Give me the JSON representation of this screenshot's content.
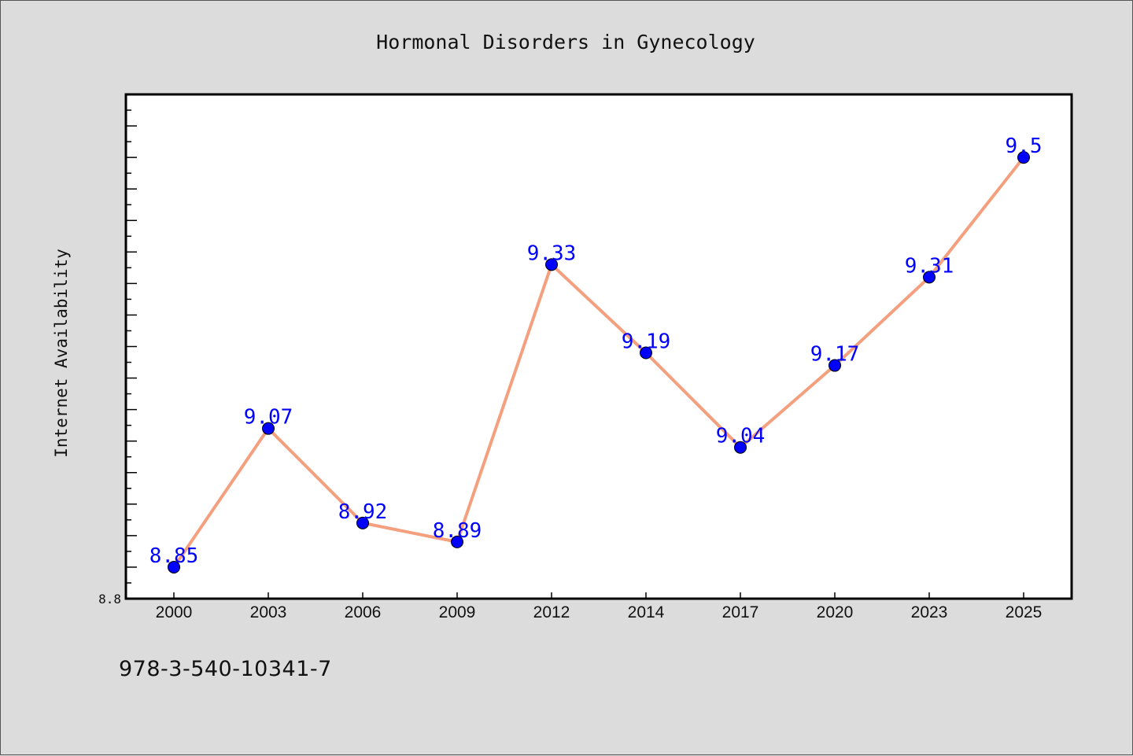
{
  "footer": {
    "code": "978-3-540-10341-7"
  },
  "chart_data": {
    "type": "line",
    "title": "Hormonal Disorders in Gynecology",
    "xlabel": "",
    "ylabel": "Internet Availability",
    "categories": [
      "2000",
      "2003",
      "2006",
      "2009",
      "2012",
      "2014",
      "2017",
      "2020",
      "2023",
      "2025"
    ],
    "series": [
      {
        "values": [
          8.85,
          9.07,
          8.92,
          8.89,
          9.33,
          9.19,
          9.04,
          9.17,
          9.31,
          9.5
        ]
      }
    ],
    "data_labels": [
      "8.85",
      "9.07",
      "8.92",
      "8.89",
      "9.33",
      "9.19",
      "9.04",
      "9.17",
      "9.31",
      "9.5"
    ],
    "ylim": [
      8.8,
      9.6
    ],
    "y_tick_labels": [
      "8.8"
    ],
    "grid": false,
    "line_color": "#f4a07e",
    "marker_color": "#0000ff",
    "label_color": "#0000ff",
    "background_color": "#dcdcdc",
    "plot_background_color": "#ffffff"
  }
}
